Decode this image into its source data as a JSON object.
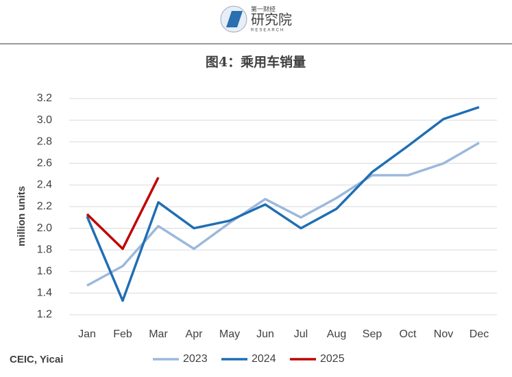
{
  "header": {
    "logo_top": "第一财经",
    "logo_main": "研究院",
    "logo_sub": "RESEARCH"
  },
  "chart_data": {
    "type": "line",
    "title": "图4：乘用车销量",
    "y_label": "million units",
    "source": "CEIC, Yicai",
    "categories": [
      "Jan",
      "Feb",
      "Mar",
      "Apr",
      "May",
      "Jun",
      "Jul",
      "Aug",
      "Sep",
      "Oct",
      "Nov",
      "Dec"
    ],
    "series": [
      {
        "name": "2023",
        "color": "#9cb8dc",
        "values": [
          1.47,
          1.65,
          2.02,
          1.81,
          2.05,
          2.27,
          2.1,
          2.28,
          2.49,
          2.49,
          2.6,
          2.79
        ]
      },
      {
        "name": "2024",
        "color": "#1f6eb4",
        "values": [
          2.11,
          1.33,
          2.24,
          2.0,
          2.07,
          2.22,
          2.0,
          2.18,
          2.52,
          2.76,
          3.01,
          3.12
        ]
      },
      {
        "name": "2025",
        "color": "#c00000",
        "values": [
          2.13,
          1.81,
          2.47,
          null,
          null,
          null,
          null,
          null,
          null,
          null,
          null,
          null
        ]
      }
    ],
    "ylim": [
      1.2,
      3.2
    ],
    "yticks": [
      1.2,
      1.4,
      1.6,
      1.8,
      {
        "value": 2,
        "label": "2.0"
      },
      2.2,
      2.4,
      2.6,
      2.8,
      {
        "value": 3,
        "label": "3.0"
      },
      3.2
    ],
    "grid": true,
    "legend": "bottom"
  }
}
